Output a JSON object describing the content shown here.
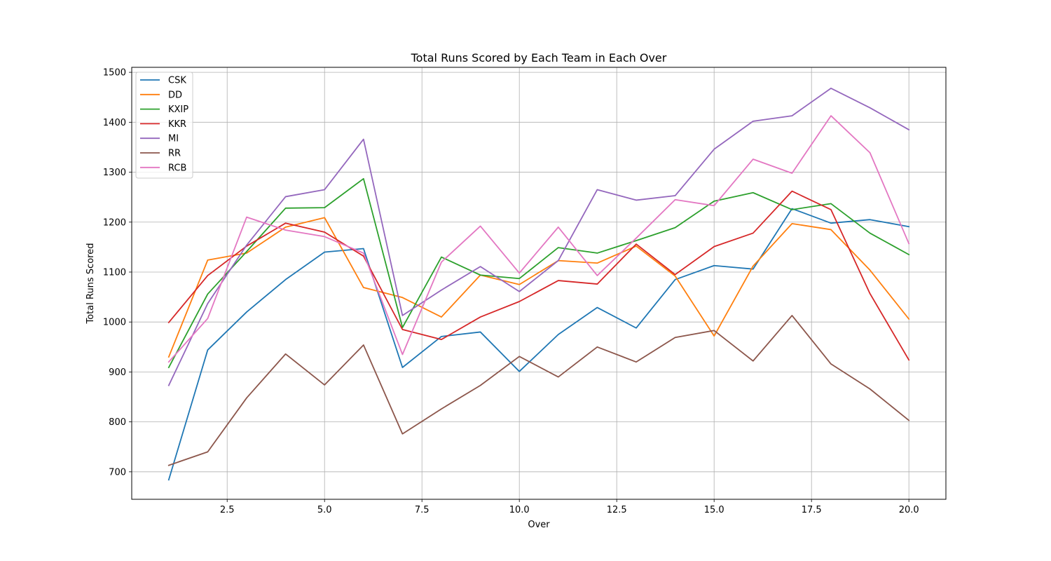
{
  "chart_data": {
    "type": "line",
    "title": "Total Runs Scored by Each Team in Each Over",
    "xlabel": "Over",
    "ylabel": "Total Runs Scored",
    "xlim": [
      0.05,
      20.95
    ],
    "ylim": [
      645,
      1510
    ],
    "xticks": [
      "2.5",
      "5.0",
      "7.5",
      "10.0",
      "12.5",
      "15.0",
      "17.5",
      "20.0"
    ],
    "yticks": [
      "700",
      "800",
      "900",
      "1000",
      "1100",
      "1200",
      "1300",
      "1400",
      "1500"
    ],
    "grid": true,
    "legend_position": "top-left",
    "x": [
      1,
      2,
      3,
      4,
      5,
      6,
      7,
      8,
      9,
      10,
      11,
      12,
      13,
      14,
      15,
      16,
      17,
      18,
      19,
      20
    ],
    "series": [
      {
        "name": "CSK",
        "color": "#1f77b4",
        "values": [
          684,
          944,
          1020,
          1085,
          1140,
          1147,
          909,
          971,
          980,
          901,
          975,
          1029,
          988,
          1085,
          1113,
          1106,
          1227,
          1198,
          1205,
          1191
        ]
      },
      {
        "name": "DD",
        "color": "#ff7f0e",
        "values": [
          930,
          1124,
          1138,
          1190,
          1209,
          1069,
          1049,
          1010,
          1094,
          1075,
          1123,
          1118,
          1152,
          1092,
          972,
          1112,
          1197,
          1185,
          1104,
          1006
        ]
      },
      {
        "name": "KXIP",
        "color": "#2ca02c",
        "values": [
          909,
          1056,
          1141,
          1228,
          1229,
          1287,
          989,
          1130,
          1094,
          1087,
          1149,
          1138,
          1163,
          1189,
          1242,
          1259,
          1225,
          1237,
          1178,
          1135
        ]
      },
      {
        "name": "KKR",
        "color": "#d62728",
        "values": [
          999,
          1093,
          1152,
          1198,
          1180,
          1132,
          985,
          965,
          1010,
          1041,
          1083,
          1076,
          1156,
          1095,
          1151,
          1178,
          1262,
          1225,
          1057,
          924
        ]
      },
      {
        "name": "MI",
        "color": "#9467bd",
        "values": [
          873,
          1037,
          1154,
          1251,
          1265,
          1366,
          1013,
          1064,
          1111,
          1061,
          1123,
          1265,
          1244,
          1253,
          1346,
          1402,
          1413,
          1468,
          1429,
          1385
        ]
      },
      {
        "name": "RR",
        "color": "#8c564b",
        "values": [
          713,
          740,
          848,
          936,
          874,
          954,
          776,
          826,
          873,
          931,
          890,
          950,
          920,
          969,
          983,
          922,
          1013,
          916,
          866,
          803
        ]
      },
      {
        "name": "RCB",
        "color": "#e377c2",
        "values": [
          920,
          1007,
          1210,
          1184,
          1171,
          1138,
          935,
          1120,
          1192,
          1098,
          1190,
          1093,
          1168,
          1245,
          1233,
          1326,
          1298,
          1413,
          1339,
          1157
        ]
      }
    ]
  }
}
